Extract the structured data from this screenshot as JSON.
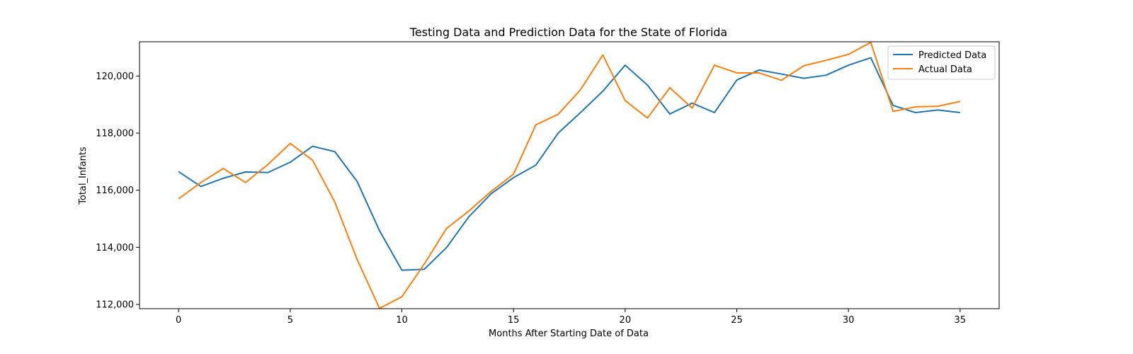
{
  "chart_data": {
    "type": "line",
    "title": "Testing Data and Prediction Data for the State of Florida",
    "xlabel": "Months After Starting Date of Data",
    "ylabel": "Total_Infants",
    "xlim": [
      -1.75,
      36.75
    ],
    "ylim": [
      111850,
      121200
    ],
    "x_ticks": [
      0,
      5,
      10,
      15,
      20,
      25,
      30,
      35
    ],
    "y_ticks": [
      112000,
      114000,
      116000,
      118000,
      120000
    ],
    "y_tick_labels": [
      "112,000",
      "114,000",
      "116,000",
      "118,000",
      "120,000"
    ],
    "grid": false,
    "legend_position": "top-right",
    "x": [
      0,
      1,
      2,
      3,
      4,
      5,
      6,
      7,
      8,
      9,
      10,
      11,
      12,
      13,
      14,
      15,
      16,
      17,
      18,
      19,
      20,
      21,
      22,
      23,
      24,
      25,
      26,
      27,
      28,
      29,
      30,
      31,
      32,
      33,
      34,
      35
    ],
    "series": [
      {
        "name": "Predicted Data",
        "color": "#1f77b4",
        "values": [
          116650,
          116130,
          116420,
          116640,
          116620,
          116980,
          117540,
          117350,
          116300,
          114580,
          113200,
          113230,
          113990,
          115070,
          115880,
          116440,
          116880,
          118000,
          118720,
          119470,
          120380,
          119680,
          118670,
          119050,
          118720,
          119860,
          120210,
          120070,
          119920,
          120030,
          120380,
          120640,
          118970,
          118720,
          118810,
          118720
        ]
      },
      {
        "name": "Actual Data",
        "color": "#ff7f0e",
        "values": [
          115700,
          116270,
          116760,
          116270,
          116900,
          117640,
          117050,
          115580,
          113570,
          111860,
          112270,
          113410,
          114660,
          115270,
          115960,
          116560,
          118290,
          118660,
          119520,
          120740,
          119140,
          118530,
          119590,
          118880,
          120380,
          120110,
          120110,
          119850,
          120360,
          120550,
          120760,
          121180,
          118760,
          118920,
          118940,
          119110
        ]
      }
    ]
  }
}
